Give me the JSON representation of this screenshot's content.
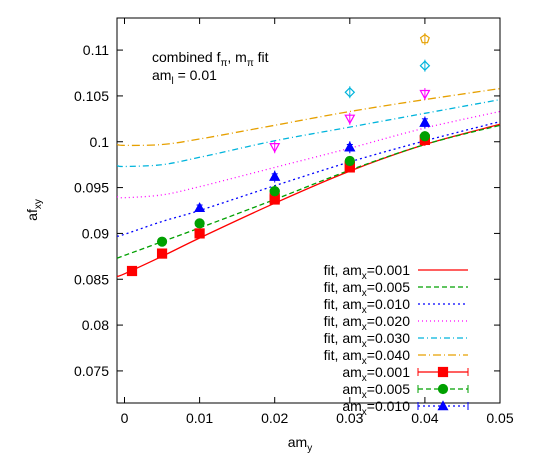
{
  "chart_data": {
    "type": "scatter",
    "title": "",
    "annotation": {
      "line1": {
        "pre": "combined f",
        "sub1": "π",
        "mid": ", m",
        "sub2": "π",
        "post": " fit"
      },
      "line2": {
        "pre": "am",
        "sub": "l",
        "post": " = 0.01"
      }
    },
    "xlabel": {
      "main": "am",
      "sub": "y"
    },
    "ylabel": {
      "main": "af",
      "sub": "xy"
    },
    "xlim": [
      -0.001,
      0.05
    ],
    "ylim": [
      0.0715,
      0.1135
    ],
    "xticks": [
      0,
      0.01,
      0.02,
      0.03,
      0.04,
      0.05
    ],
    "xtick_labels": [
      "0",
      "0.01",
      "0.02",
      "0.03",
      "0.04",
      "0.05"
    ],
    "yticks": [
      0.075,
      0.08,
      0.085,
      0.09,
      0.095,
      0.1,
      0.105,
      0.11
    ],
    "ytick_labels": [
      "0.075",
      "0.08",
      "0.085",
      "0.09",
      "0.095",
      "0.1",
      "0.105",
      "0.11"
    ],
    "grid": false,
    "legend_position": "bottom-right",
    "fit_lines": [
      {
        "label_pre": "fit, am",
        "label_sub": "x",
        "label_post": "=0.001",
        "color": "#ff0000",
        "dash": "",
        "x": [
          -0.001,
          0,
          0.005,
          0.01,
          0.02,
          0.03,
          0.04,
          0.05
        ],
        "y": [
          0.0853,
          0.0856,
          0.0875,
          0.0895,
          0.0933,
          0.0968,
          0.0997,
          0.1019
        ]
      },
      {
        "label_pre": "fit, am",
        "label_sub": "x",
        "label_post": "=0.005",
        "color": "#00a000",
        "dash": "5,3",
        "x": [
          -0.001,
          0,
          0.005,
          0.01,
          0.02,
          0.03,
          0.04,
          0.05
        ],
        "y": [
          0.0873,
          0.0876,
          0.0891,
          0.0906,
          0.0937,
          0.0969,
          0.0997,
          0.1018
        ]
      },
      {
        "label_pre": "fit, am",
        "label_sub": "x",
        "label_post": "=0.010",
        "color": "#0000ff",
        "dash": "2,3",
        "x": [
          -0.001,
          0,
          0.005,
          0.01,
          0.02,
          0.03,
          0.04,
          0.05
        ],
        "y": [
          0.0897,
          0.0899,
          0.0913,
          0.0925,
          0.0952,
          0.0978,
          0.1001,
          0.1022
        ]
      },
      {
        "label_pre": "fit, am",
        "label_sub": "x",
        "label_post": "=0.020",
        "color": "#ff00ff",
        "dash": "1,3",
        "x": [
          -0.001,
          0,
          0.005,
          0.01,
          0.02,
          0.03,
          0.04,
          0.05
        ],
        "y": [
          0.094,
          0.0939,
          0.0942,
          0.0951,
          0.0972,
          0.0993,
          0.1015,
          0.1033
        ]
      },
      {
        "label_pre": "fit, am",
        "label_sub": "x",
        "label_post": "=0.030",
        "color": "#00b4dc",
        "dash": "6,3,1,3",
        "x": [
          -0.001,
          0,
          0.005,
          0.01,
          0.02,
          0.03,
          0.04,
          0.05
        ],
        "y": [
          0.0974,
          0.0973,
          0.0975,
          0.0983,
          0.1001,
          0.1016,
          0.1031,
          0.1046
        ]
      },
      {
        "label_pre": "fit, am",
        "label_sub": "x",
        "label_post": "=0.040",
        "color": "#e6a000",
        "dash": "8,3,1,3",
        "x": [
          -0.001,
          0,
          0.005,
          0.01,
          0.02,
          0.03,
          0.04,
          0.05
        ],
        "y": [
          0.0997,
          0.0996,
          0.0997,
          0.1003,
          0.1018,
          0.1033,
          0.1046,
          0.1058
        ]
      }
    ],
    "data_series": [
      {
        "label_pre": "am",
        "label_sub": "x",
        "label_post": "=0.001",
        "color": "#ff0000",
        "dash": "",
        "marker": "square",
        "points": [
          {
            "x": 0.001,
            "y": 0.0859,
            "err": 0.0004
          },
          {
            "x": 0.005,
            "y": 0.0878,
            "err": 0.0004
          },
          {
            "x": 0.01,
            "y": 0.09,
            "err": 0.0004
          },
          {
            "x": 0.02,
            "y": 0.0937,
            "err": 0.0004
          },
          {
            "x": 0.03,
            "y": 0.0972,
            "err": 0.0005
          },
          {
            "x": 0.04,
            "y": 0.1002,
            "err": 0.0005
          }
        ]
      },
      {
        "label_pre": "am",
        "label_sub": "x",
        "label_post": "=0.005",
        "color": "#00a000",
        "dash": "5,3",
        "marker": "circle",
        "points": [
          {
            "x": 0.005,
            "y": 0.0891,
            "err": 0.0003
          },
          {
            "x": 0.01,
            "y": 0.0911,
            "err": 0.0003
          },
          {
            "x": 0.02,
            "y": 0.0946,
            "err": 0.0003
          },
          {
            "x": 0.03,
            "y": 0.0979,
            "err": 0.0004
          },
          {
            "x": 0.04,
            "y": 0.1006,
            "err": 0.0004
          }
        ]
      },
      {
        "label_pre": "am",
        "label_sub": "x",
        "label_post": "=0.010",
        "color": "#0000ff",
        "dash": "2,3",
        "marker": "triangle",
        "points": [
          {
            "x": 0.01,
            "y": 0.0928,
            "err": 0.0003
          },
          {
            "x": 0.02,
            "y": 0.0962,
            "err": 0.0003
          },
          {
            "x": 0.03,
            "y": 0.0994,
            "err": 0.0003
          },
          {
            "x": 0.04,
            "y": 0.1021,
            "err": 0.0004
          }
        ]
      }
    ],
    "open_series": [
      {
        "name": "am_x=0.005 (other)",
        "color": "#00a000",
        "marker": "open-circle",
        "points": [
          {
            "x": 0.02,
            "y": 0.0946
          },
          {
            "x": 0.03,
            "y": 0.0977
          },
          {
            "x": 0.04,
            "y": 0.1005
          }
        ]
      },
      {
        "name": "am_x=0.001 (other)",
        "color": "#ff0000",
        "marker": "open-square",
        "points": [
          {
            "x": 0.02,
            "y": 0.0939
          },
          {
            "x": 0.03,
            "y": 0.0974
          },
          {
            "x": 0.04,
            "y": 0.1002
          }
        ]
      },
      {
        "name": "am_x=0.010 (other)",
        "color": "#0000ff",
        "marker": "open-triangle",
        "points": [
          {
            "x": 0.02,
            "y": 0.0962
          },
          {
            "x": 0.03,
            "y": 0.0994
          },
          {
            "x": 0.04,
            "y": 0.1021
          }
        ]
      },
      {
        "name": "am_x=0.020",
        "color": "#ff00ff",
        "marker": "open-triangle-down",
        "points": [
          {
            "x": 0.02,
            "y": 0.0994
          },
          {
            "x": 0.03,
            "y": 0.1025
          },
          {
            "x": 0.04,
            "y": 0.1052
          }
        ]
      },
      {
        "name": "am_x=0.030",
        "color": "#00b4dc",
        "marker": "open-diamond",
        "points": [
          {
            "x": 0.03,
            "y": 0.1054
          },
          {
            "x": 0.04,
            "y": 0.1083
          }
        ]
      },
      {
        "name": "am_x=0.040",
        "color": "#e6a000",
        "marker": "open-pentagon",
        "points": [
          {
            "x": 0.04,
            "y": 0.1112
          }
        ]
      }
    ]
  }
}
